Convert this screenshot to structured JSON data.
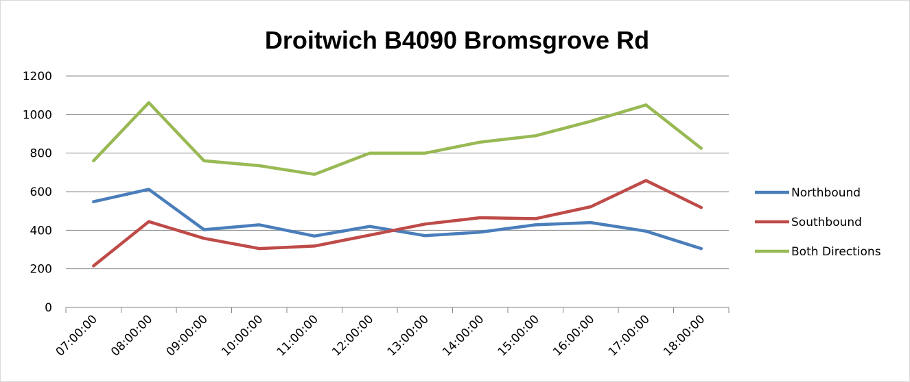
{
  "chart_data": {
    "type": "line",
    "title": "Droitwich B4090 Bromsgrove Rd",
    "xlabel": "",
    "ylabel": "",
    "categories": [
      "07:00:00",
      "08:00:00",
      "09:00:00",
      "10:00:00",
      "11:00:00",
      "12:00:00",
      "13:00:00",
      "14:00:00",
      "15:00:00",
      "16:00:00",
      "17:00:00",
      "18:00:00"
    ],
    "y_ticks": [
      "0",
      "200",
      "400",
      "600",
      "800",
      "1000",
      "1200"
    ],
    "ylim": [
      0,
      1200
    ],
    "grid": true,
    "legend_position": "right",
    "series": [
      {
        "name": "Northbound",
        "color": "#4a7ebb",
        "values": [
          548,
          612,
          403,
          428,
          370,
          420,
          372,
          390,
          428,
          440,
          395,
          305
        ]
      },
      {
        "name": "Southbound",
        "color": "#be4b48",
        "values": [
          215,
          445,
          358,
          305,
          318,
          375,
          432,
          465,
          460,
          522,
          658,
          518
        ]
      },
      {
        "name": "Both Directions",
        "color": "#98b954",
        "values": [
          760,
          1062,
          760,
          735,
          690,
          800,
          800,
          857,
          890,
          965,
          1050,
          825
        ]
      }
    ]
  }
}
